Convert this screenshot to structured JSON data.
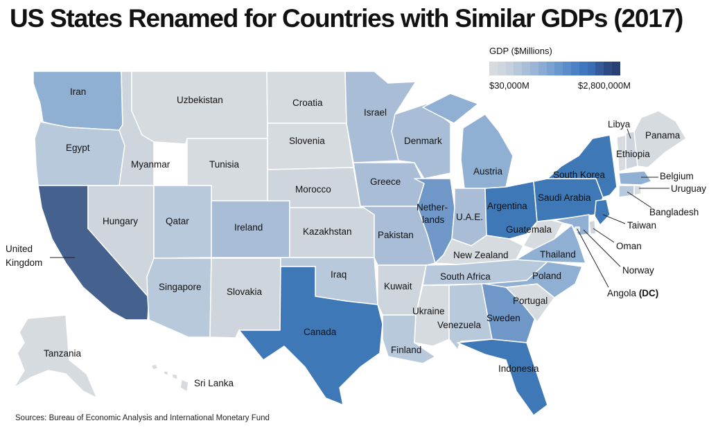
{
  "title": "US States Renamed for Countries with Similar GDPs (2017)",
  "legend": {
    "title": "GDP ($Millions)",
    "min_label": "$30,000M",
    "max_label": "$2,800,000M",
    "colors": [
      "#d6dbe0",
      "#cfd6de",
      "#c5d0dc",
      "#b8c8db",
      "#a9bfd9",
      "#9ab5d6",
      "#8aacd4",
      "#7aa2d1",
      "#6a98ce",
      "#5b8dca",
      "#4c82c5",
      "#3e77bf",
      "#3a6db4",
      "#36599a",
      "#2f4a82",
      "#2a3f73"
    ]
  },
  "source": "Sources: Bureau of Economic Analysis and International Monetary Fund",
  "colors": {
    "light_gray": "#d6dbe0",
    "gray": "#cfd5dc",
    "pale_blue": "#b9c9dc",
    "light_blue": "#a9bed6",
    "mid_blue": "#8fb0d3",
    "blue": "#6f98c9",
    "strong_blue": "#3e78b6",
    "navy": "#45618d",
    "dark_navy": "#3d5683"
  },
  "states": {
    "WA": "Iran",
    "OR": "Egypt",
    "CA": "United Kingdom",
    "ID": "Myanmar",
    "NV": "Hungary",
    "MT": "Uzbekistan",
    "WY": "Tunisia",
    "UT": "Qatar",
    "CO": "Ireland",
    "AZ": "Singapore",
    "NM": "Slovakia",
    "ND": "Croatia",
    "SD": "Slovenia",
    "NE": "Morocco",
    "KS": "Kazakhstan",
    "OK": "Iraq",
    "TX": "Canada",
    "MN": "Israel",
    "IA": "Greece",
    "MO": "Pakistan",
    "AR": "Kuwait",
    "LA": "Finland",
    "WI": "Denmark",
    "IL": "Nether-\nlands",
    "MI": "Austria",
    "IN": "U.A.E.",
    "OH": "Argentina",
    "KY": "New Zealand",
    "TN": "South Africa",
    "MS": "Ukraine",
    "AL": "Venezuela",
    "GA": "Sweden",
    "FL": "Indonesia",
    "SC": "Portugal",
    "NC": "Poland",
    "VA": "Thailand",
    "WV": "Guatemala",
    "PA": "Saudi Arabia",
    "NY": "South Korea",
    "VT": "Ethiopia",
    "NH": "Libya",
    "ME": "Panama",
    "MA": "Belgium",
    "RI": "Uruguay",
    "CT": "Bangladesh",
    "NJ": "Taiwan",
    "DE": "Oman",
    "MD": "Norway",
    "DC": "Angola",
    "AK": "Tanzania",
    "HI": "Sri Lanka"
  },
  "dc_suffix": "(DC)",
  "region_label": "United\nKingdom"
}
